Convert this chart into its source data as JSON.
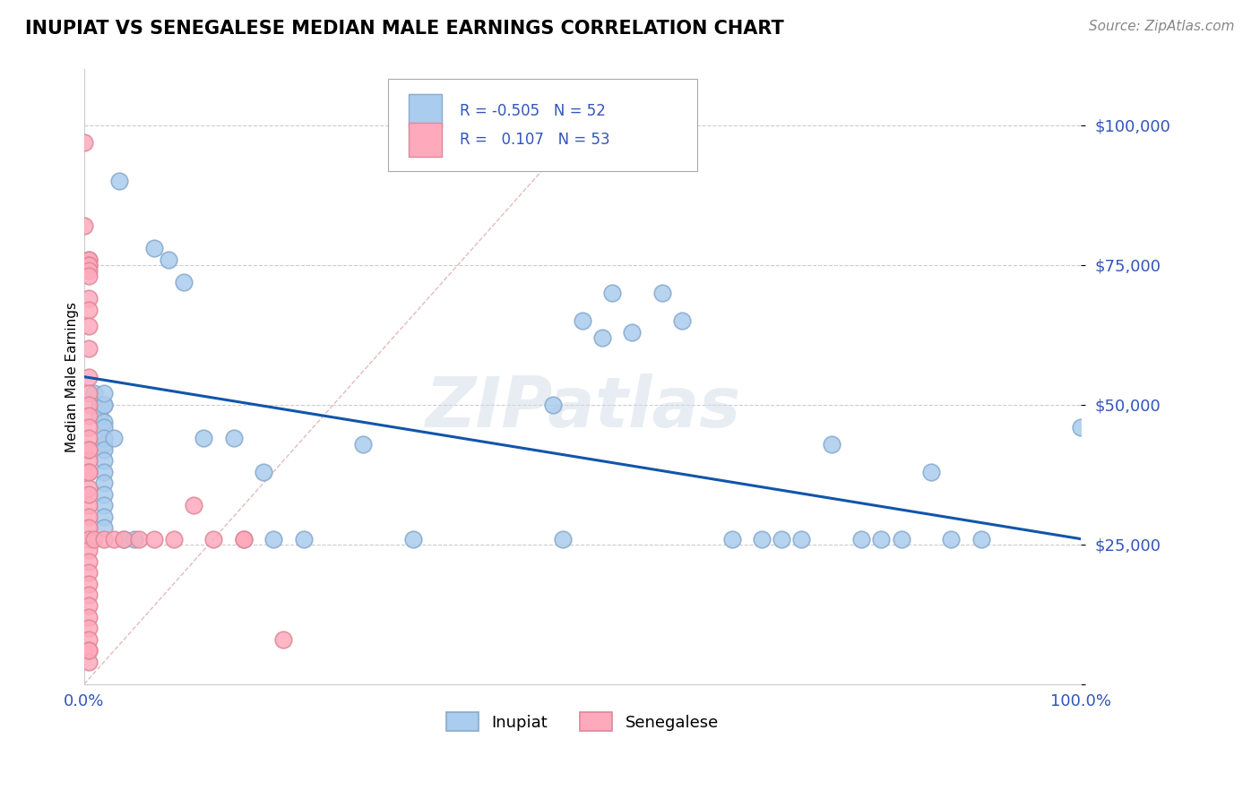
{
  "title": "INUPIAT VS SENEGALESE MEDIAN MALE EARNINGS CORRELATION CHART",
  "source": "Source: ZipAtlas.com",
  "ylabel": "Median Male Earnings",
  "xlim": [
    0,
    1
  ],
  "ylim": [
    0,
    110000
  ],
  "yticks": [
    0,
    25000,
    50000,
    75000,
    100000
  ],
  "grid_color": "#cccccc",
  "background_color": "#ffffff",
  "r_color": "#3355bb",
  "inupiat_color": "#aaccee",
  "inupiat_edge": "#88aacc",
  "senegalese_color": "#ffaabc",
  "senegalese_edge": "#dd8899",
  "trendline_color": "#1155aa",
  "diagonal_color": "#ddaaaa",
  "inupiat_points": [
    [
      0.035,
      90000
    ],
    [
      0.07,
      78000
    ],
    [
      0.085,
      76000
    ],
    [
      0.1,
      72000
    ],
    [
      0.01,
      52000
    ],
    [
      0.015,
      50000
    ],
    [
      0.015,
      48000
    ],
    [
      0.02,
      50000
    ],
    [
      0.02,
      47000
    ],
    [
      0.02,
      43000
    ],
    [
      0.02,
      50000
    ],
    [
      0.02,
      52000
    ],
    [
      0.02,
      46000
    ],
    [
      0.02,
      44000
    ],
    [
      0.02,
      42000
    ],
    [
      0.02,
      40000
    ],
    [
      0.02,
      38000
    ],
    [
      0.02,
      36000
    ],
    [
      0.02,
      34000
    ],
    [
      0.02,
      32000
    ],
    [
      0.02,
      30000
    ],
    [
      0.02,
      28000
    ],
    [
      0.03,
      44000
    ],
    [
      0.04,
      26000
    ],
    [
      0.05,
      26000
    ],
    [
      0.12,
      44000
    ],
    [
      0.15,
      44000
    ],
    [
      0.18,
      38000
    ],
    [
      0.19,
      26000
    ],
    [
      0.22,
      26000
    ],
    [
      0.28,
      43000
    ],
    [
      0.33,
      26000
    ],
    [
      0.47,
      50000
    ],
    [
      0.48,
      26000
    ],
    [
      0.5,
      65000
    ],
    [
      0.52,
      62000
    ],
    [
      0.53,
      70000
    ],
    [
      0.55,
      63000
    ],
    [
      0.58,
      70000
    ],
    [
      0.6,
      65000
    ],
    [
      0.65,
      26000
    ],
    [
      0.68,
      26000
    ],
    [
      0.7,
      26000
    ],
    [
      0.72,
      26000
    ],
    [
      0.75,
      43000
    ],
    [
      0.78,
      26000
    ],
    [
      0.8,
      26000
    ],
    [
      0.82,
      26000
    ],
    [
      0.85,
      38000
    ],
    [
      0.87,
      26000
    ],
    [
      0.9,
      26000
    ],
    [
      1.0,
      46000
    ]
  ],
  "senegalese_points": [
    [
      0.0,
      97000
    ],
    [
      0.0,
      82000
    ],
    [
      0.005,
      76000
    ],
    [
      0.005,
      76000
    ],
    [
      0.005,
      75000
    ],
    [
      0.005,
      75000
    ],
    [
      0.005,
      74000
    ],
    [
      0.005,
      73000
    ],
    [
      0.005,
      69000
    ],
    [
      0.005,
      67000
    ],
    [
      0.005,
      64000
    ],
    [
      0.005,
      60000
    ],
    [
      0.005,
      55000
    ],
    [
      0.005,
      52000
    ],
    [
      0.005,
      50000
    ],
    [
      0.005,
      48000
    ],
    [
      0.005,
      46000
    ],
    [
      0.005,
      44000
    ],
    [
      0.005,
      42000
    ],
    [
      0.005,
      40000
    ],
    [
      0.005,
      38000
    ],
    [
      0.005,
      35000
    ],
    [
      0.005,
      32000
    ],
    [
      0.005,
      30000
    ],
    [
      0.005,
      28000
    ],
    [
      0.005,
      26000
    ],
    [
      0.005,
      24000
    ],
    [
      0.005,
      22000
    ],
    [
      0.005,
      20000
    ],
    [
      0.005,
      18000
    ],
    [
      0.005,
      16000
    ],
    [
      0.005,
      14000
    ],
    [
      0.005,
      12000
    ],
    [
      0.005,
      10000
    ],
    [
      0.005,
      8000
    ],
    [
      0.005,
      6000
    ],
    [
      0.005,
      4000
    ],
    [
      0.01,
      26000
    ],
    [
      0.02,
      26000
    ],
    [
      0.03,
      26000
    ],
    [
      0.04,
      26000
    ],
    [
      0.055,
      26000
    ],
    [
      0.07,
      26000
    ],
    [
      0.09,
      26000
    ],
    [
      0.11,
      32000
    ],
    [
      0.13,
      26000
    ],
    [
      0.16,
      26000
    ],
    [
      0.16,
      26000
    ],
    [
      0.2,
      8000
    ],
    [
      0.005,
      42000
    ],
    [
      0.005,
      38000
    ],
    [
      0.005,
      34000
    ],
    [
      0.005,
      6000
    ]
  ],
  "trendline_x": [
    0.0,
    1.0
  ],
  "trendline_y": [
    55000,
    26000
  ]
}
